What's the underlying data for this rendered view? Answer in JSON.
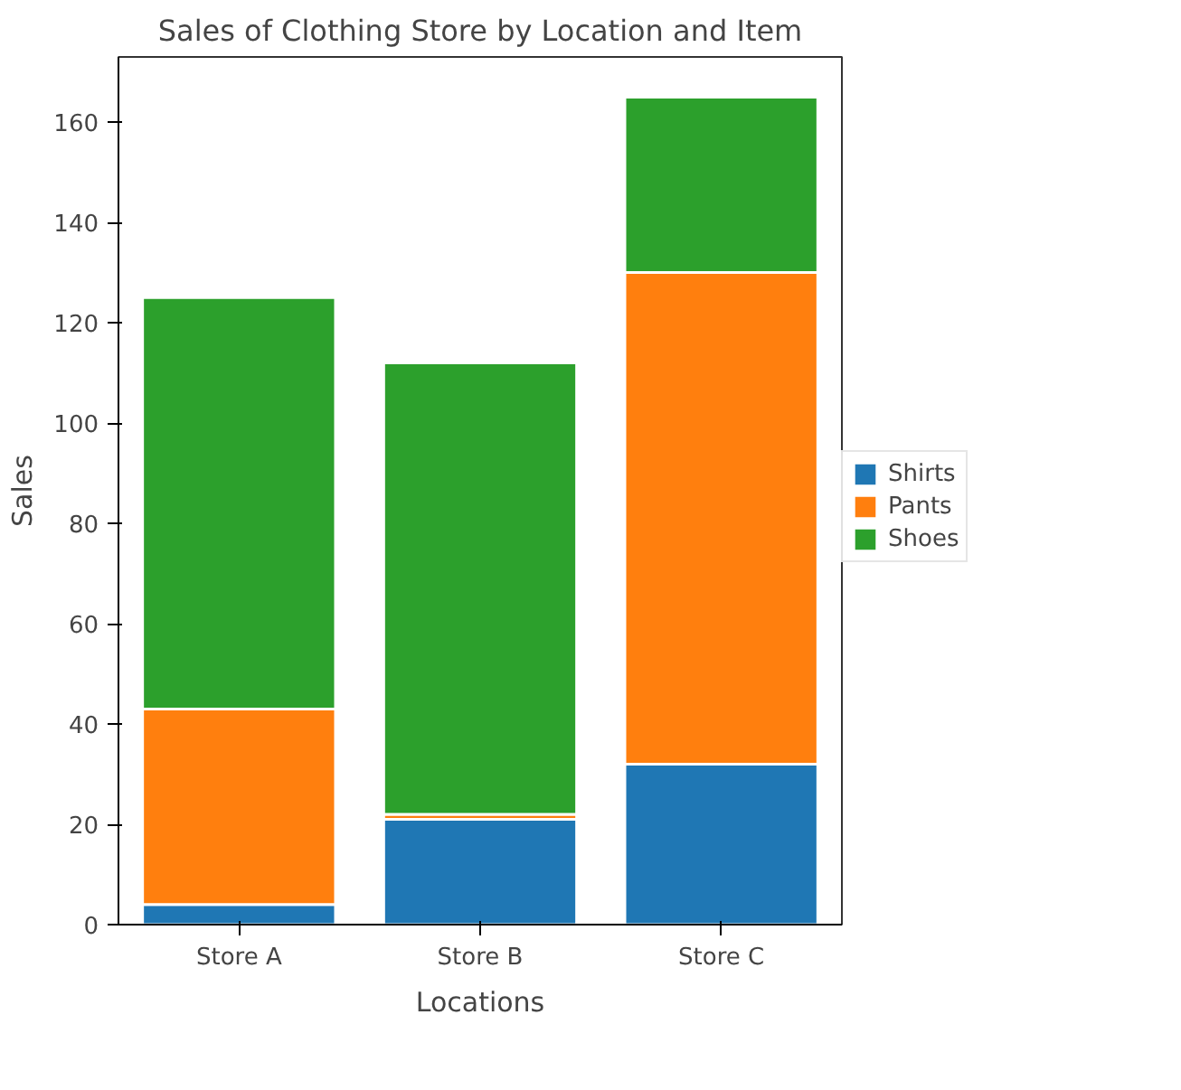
{
  "chart_data": {
    "type": "bar",
    "title": "Sales of Clothing Store by Location and Item",
    "xlabel": "Locations",
    "ylabel": "Sales",
    "categories": [
      "Store A",
      "Store B",
      "Store C"
    ],
    "stacked": true,
    "series": [
      {
        "name": "Shirts",
        "color": "#1f77b4",
        "values": [
          4,
          21,
          32
        ]
      },
      {
        "name": "Pants",
        "color": "#ff7f0e",
        "values": [
          39,
          1,
          98
        ]
      },
      {
        "name": "Shoes",
        "color": "#2ca02c",
        "values": [
          82,
          90,
          35
        ]
      }
    ],
    "ylim": [
      0,
      173
    ],
    "yticks": [
      0,
      20,
      40,
      60,
      80,
      100,
      120,
      140,
      160
    ],
    "grid": false,
    "legend": "right"
  }
}
